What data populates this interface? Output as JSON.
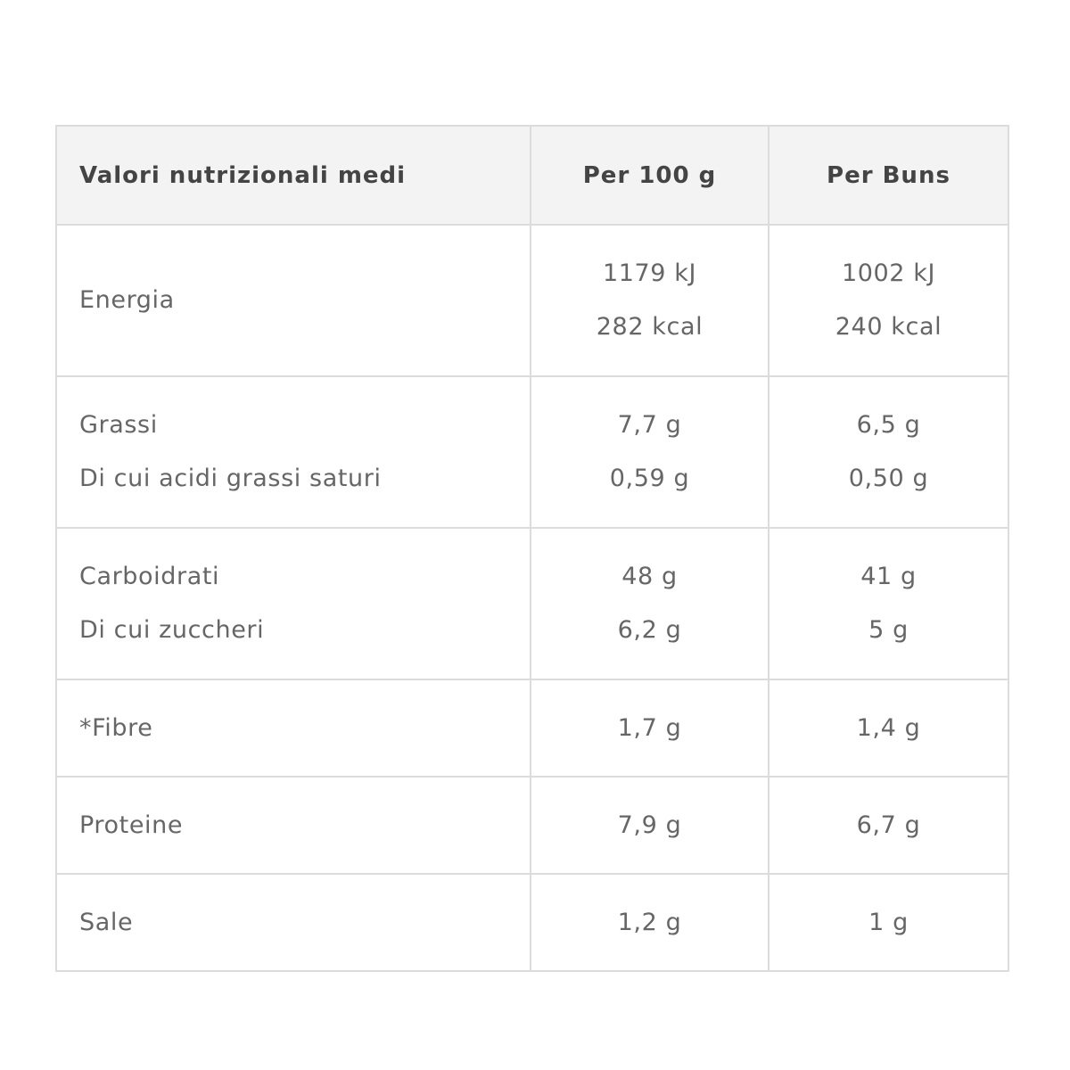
{
  "table": {
    "headers": [
      "Valori nutrizionali medi",
      "Per 100 g",
      "Per Buns"
    ],
    "rows": [
      {
        "labels": [
          "Energia"
        ],
        "per100": [
          "1179 kJ",
          "282 kcal"
        ],
        "perBuns": [
          "1002 kJ",
          "240 kcal"
        ]
      },
      {
        "labels": [
          "Grassi",
          "Di cui acidi grassi saturi"
        ],
        "per100": [
          "7,7 g",
          "0,59 g"
        ],
        "perBuns": [
          "6,5 g",
          "0,50 g"
        ]
      },
      {
        "labels": [
          "Carboidrati",
          "Di cui zuccheri"
        ],
        "per100": [
          "48 g",
          "6,2 g"
        ],
        "perBuns": [
          "41 g",
          "5 g"
        ]
      },
      {
        "labels": [
          "*Fibre"
        ],
        "per100": [
          "1,7 g"
        ],
        "perBuns": [
          "1,4 g"
        ]
      },
      {
        "labels": [
          "Proteine"
        ],
        "per100": [
          "7,9 g"
        ],
        "perBuns": [
          "6,7 g"
        ]
      },
      {
        "labels": [
          "Sale"
        ],
        "per100": [
          "1,2 g"
        ],
        "perBuns": [
          "1 g"
        ]
      }
    ]
  }
}
